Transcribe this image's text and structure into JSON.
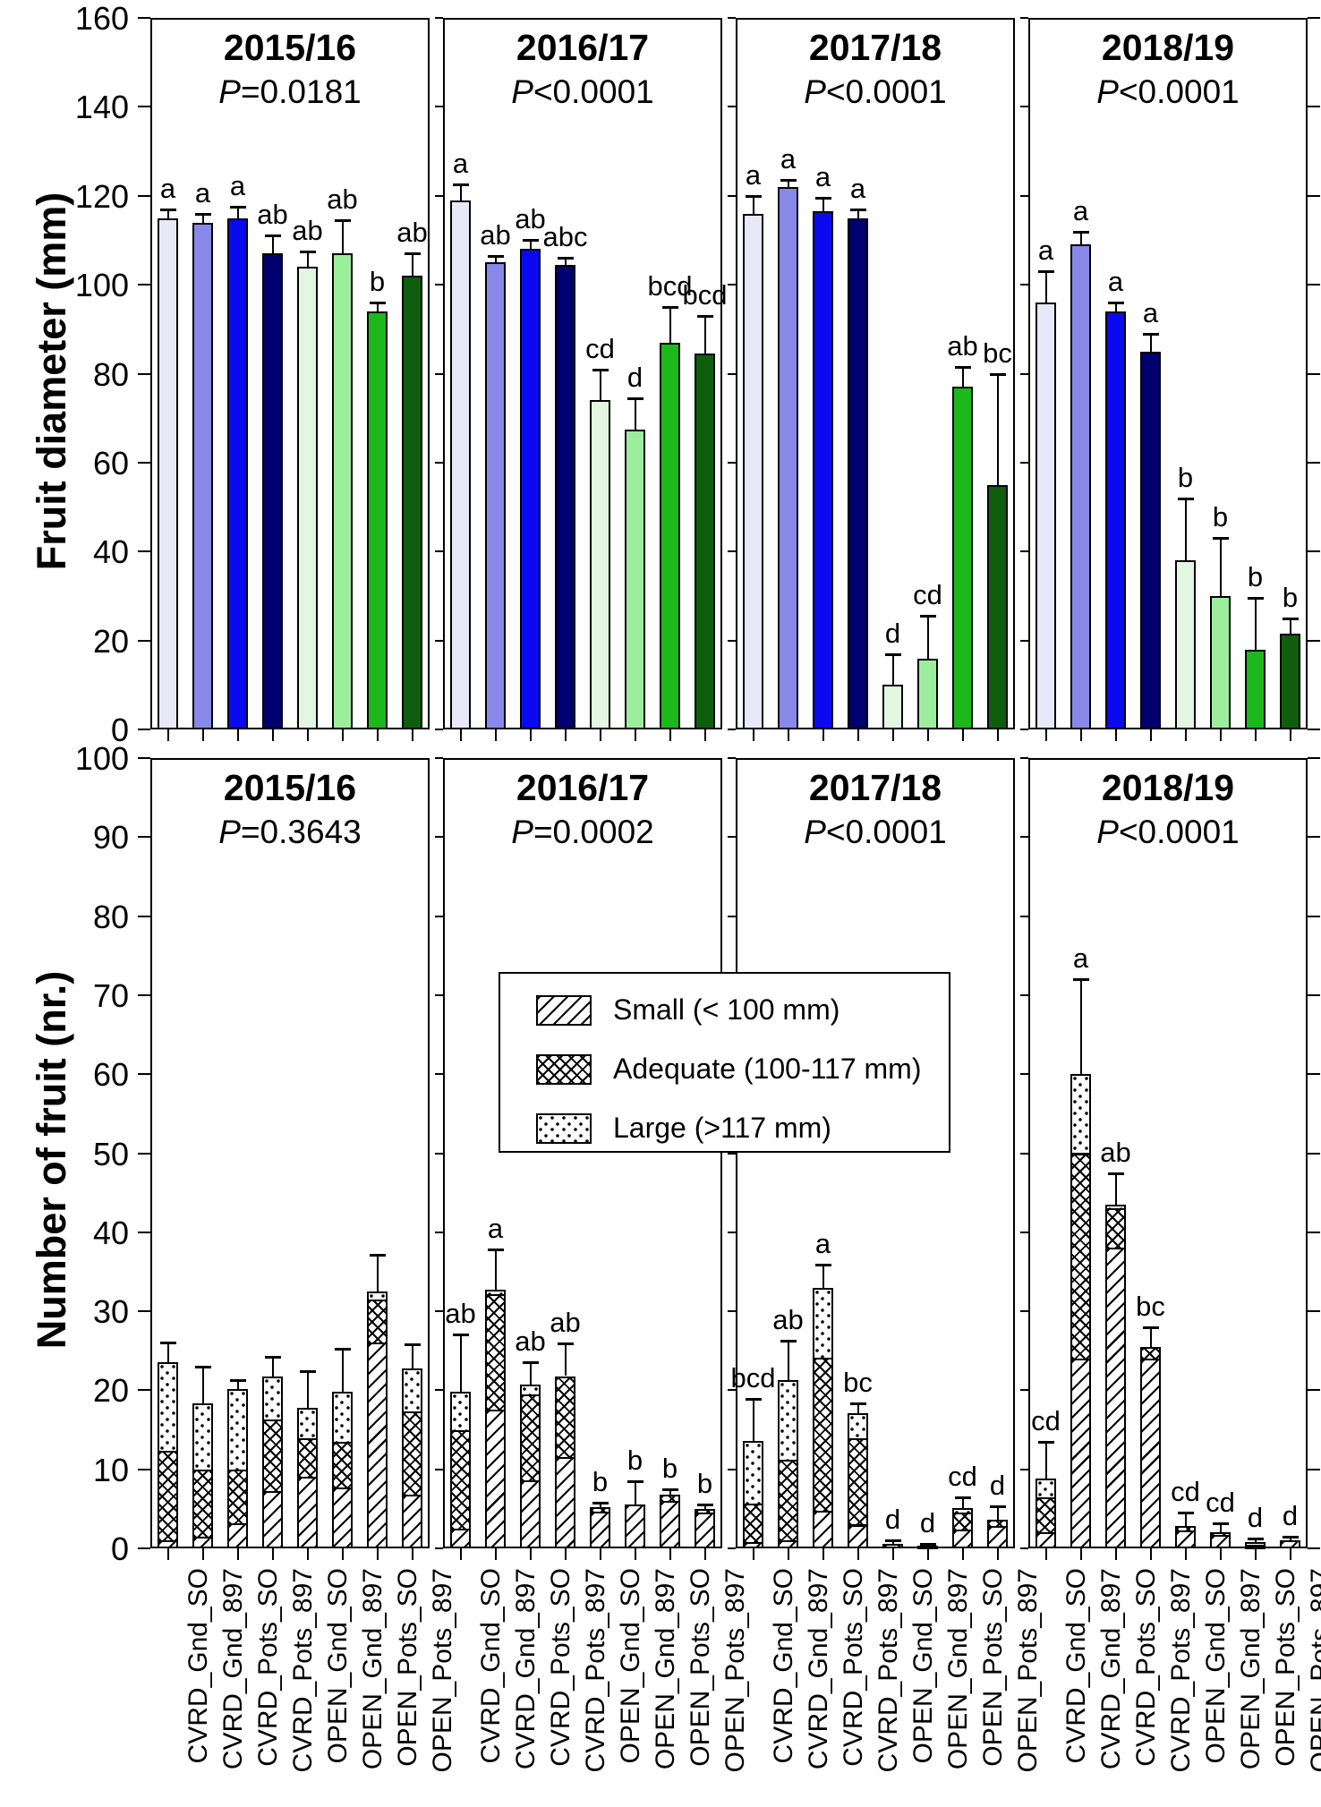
{
  "p_label": "P",
  "chart_data": {
    "type": "bar",
    "categories": [
      "CVRD_Gnd_SO",
      "CVRD_Gnd_897",
      "CVRD_Pots_SO",
      "CVRD_Pots_897",
      "OPEN_Gnd_SO",
      "OPEN_Gnd_897",
      "OPEN_Pots_SO",
      "OPEN_Pots_897"
    ],
    "series_colors": [
      "#e8e8f8",
      "#8888e8",
      "#0a0af0",
      "#00006e",
      "#e2f6e2",
      "#9cee9c",
      "#1cb81c",
      "#0e5e0e"
    ],
    "top": {
      "ylabel": "Fruit diameter (mm)",
      "ylim": [
        0,
        160
      ],
      "ystep": 20,
      "panels": [
        {
          "year": "2015/16",
          "p": "=0.0181",
          "values": [
            115,
            114,
            115,
            107,
            104,
            107,
            94,
            102
          ],
          "errors": [
            117,
            116,
            117.5,
            111,
            107.5,
            114.5,
            96,
            107
          ],
          "letters": [
            "a",
            "a",
            "a",
            "ab",
            "ab",
            "ab",
            "b",
            "ab"
          ]
        },
        {
          "year": "2016/17",
          "p": "<0.0001",
          "values": [
            119,
            105,
            108,
            104.5,
            74,
            67.5,
            87,
            84.5
          ],
          "errors": [
            122.5,
            106.5,
            110,
            106,
            81,
            74.5,
            95,
            93
          ],
          "letters": [
            "a",
            "ab",
            "ab",
            "abc",
            "cd",
            "d",
            "bcd",
            "bcd"
          ]
        },
        {
          "year": "2017/18",
          "p": "<0.0001",
          "values": [
            116,
            122,
            116.5,
            115,
            10,
            16,
            77,
            55
          ],
          "errors": [
            120,
            123.5,
            119.5,
            117,
            17,
            25.5,
            81.5,
            80
          ],
          "letters": [
            "a",
            "a",
            "a",
            "a",
            "d",
            "cd",
            "ab",
            "bc"
          ]
        },
        {
          "year": "2018/19",
          "p": "<0.0001",
          "values": [
            96,
            109,
            94,
            85,
            38,
            30,
            18,
            21.5
          ],
          "errors": [
            103,
            112,
            96,
            89,
            52,
            43,
            29.5,
            25
          ],
          "letters": [
            "a",
            "a",
            "a",
            "a",
            "b",
            "b",
            "b",
            "b"
          ]
        }
      ]
    },
    "bottom": {
      "ylabel": "Number of fruit (nr.)",
      "ylim": [
        0,
        100
      ],
      "ystep": 10,
      "legend": [
        {
          "label": "Small (< 100 mm)",
          "pattern": "pat-hatch"
        },
        {
          "label": "Adequate (100-117 mm)",
          "pattern": "pat-cross"
        },
        {
          "label": "Large (>117 mm)",
          "pattern": "pat-dots"
        }
      ],
      "panels": [
        {
          "year": "2015/16",
          "p": "=0.3643",
          "bars": [
            {
              "small": 1.0,
              "adequate": 11.3,
              "large": 11.2,
              "err": 26,
              "letter": ""
            },
            {
              "small": 1.5,
              "adequate": 8.5,
              "large": 8.3,
              "err": 23,
              "letter": ""
            },
            {
              "small": 3.2,
              "adequate": 6.8,
              "large": 10.2,
              "err": 21.3,
              "letter": ""
            },
            {
              "small": 7.2,
              "adequate": 9.1,
              "large": 5.5,
              "err": 24.2,
              "letter": ""
            },
            {
              "small": 9.1,
              "adequate": 4.8,
              "large": 3.9,
              "err": 22.4,
              "letter": ""
            },
            {
              "small": 7.7,
              "adequate": 5.8,
              "large": 6.3,
              "err": 25.3,
              "letter": ""
            },
            {
              "small": 26,
              "adequate": 5.5,
              "large": 1,
              "err": 37.2,
              "letter": ""
            },
            {
              "small": 6.8,
              "adequate": 10.5,
              "large": 5.5,
              "err": 25.8,
              "letter": ""
            }
          ]
        },
        {
          "year": "2016/17",
          "p": "=0.0002",
          "bars": [
            {
              "small": 2.5,
              "adequate": 12.4,
              "large": 4.9,
              "err": 27.1,
              "letter": "ab"
            },
            {
              "small": 17.5,
              "adequate": 14.7,
              "large": 0.5,
              "err": 37.8,
              "letter": "a"
            },
            {
              "small": 8.6,
              "adequate": 10.9,
              "large": 1.2,
              "err": 23.5,
              "letter": "ab"
            },
            {
              "small": 11.6,
              "adequate": 10.2,
              "large": 0,
              "err": 25.9,
              "letter": "ab"
            },
            {
              "small": 4.6,
              "adequate": 0.6,
              "large": 0,
              "err": 5.8,
              "letter": "b"
            },
            {
              "small": 5.6,
              "adequate": 0,
              "large": 0,
              "err": 8.5,
              "letter": "b"
            },
            {
              "small": 6.0,
              "adequate": 0.8,
              "large": 0,
              "err": 7.5,
              "letter": "b"
            },
            {
              "small": 4.5,
              "adequate": 0.5,
              "large": 0,
              "err": 5.5,
              "letter": "b"
            }
          ]
        },
        {
          "year": "2017/18",
          "p": "<0.0001",
          "bars": [
            {
              "small": 0.8,
              "adequate": 4.9,
              "large": 7.9,
              "err": 18.9,
              "letter": "bcd"
            },
            {
              "small": 1.0,
              "adequate": 10.2,
              "large": 10.1,
              "err": 26.3,
              "letter": "ab"
            },
            {
              "small": 4.8,
              "adequate": 19.3,
              "large": 8.9,
              "err": 35.9,
              "letter": "a"
            },
            {
              "small": 3.0,
              "adequate": 10.9,
              "large": 3.2,
              "err": 18.4,
              "letter": "bc"
            },
            {
              "small": 0.6,
              "adequate": 0,
              "large": 0,
              "err": 1.0,
              "letter": "d"
            },
            {
              "small": 0.3,
              "adequate": 0,
              "large": 0,
              "err": 0.6,
              "letter": "d"
            },
            {
              "small": 2.4,
              "adequate": 2.1,
              "large": 0.6,
              "err": 6.4,
              "letter": "cd"
            },
            {
              "small": 2.8,
              "adequate": 0.8,
              "large": 0,
              "err": 5.3,
              "letter": "d"
            }
          ]
        },
        {
          "year": "2018/19",
          "p": "<0.0001",
          "bars": [
            {
              "small": 2.0,
              "adequate": 4.5,
              "large": 2.3,
              "err": 13.5,
              "letter": "cd"
            },
            {
              "small": 24,
              "adequate": 26,
              "large": 10,
              "err": 72,
              "letter": "a"
            },
            {
              "small": 38,
              "adequate": 5,
              "large": 0.5,
              "err": 47.5,
              "letter": "ab"
            },
            {
              "small": 24,
              "adequate": 1.5,
              "large": 0,
              "err": 28,
              "letter": "bc"
            },
            {
              "small": 2.3,
              "adequate": 0.5,
              "large": 0,
              "err": 4.5,
              "letter": "cd"
            },
            {
              "small": 1.7,
              "adequate": 0.3,
              "large": 0,
              "err": 3.2,
              "letter": "cd"
            },
            {
              "small": 0.3,
              "adequate": 0.2,
              "large": 0.3,
              "err": 1.2,
              "letter": "d"
            },
            {
              "small": 1.0,
              "adequate": 0,
              "large": 0,
              "err": 1.5,
              "letter": "d"
            }
          ]
        }
      ]
    }
  }
}
